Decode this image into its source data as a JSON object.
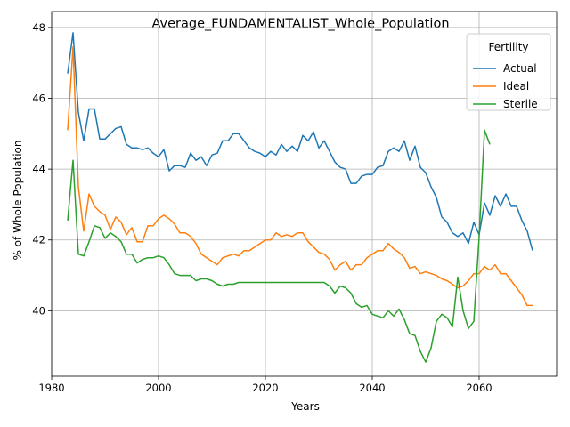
{
  "chart_data": {
    "type": "line",
    "title": "Average_FUNDAMENTALIST_Whole_Population",
    "xlabel": "Years",
    "ylabel": "% of Whole Population",
    "xlim": [
      1980,
      2074.5
    ],
    "ylim": [
      38.15,
      48.45
    ],
    "xticks": [
      1980,
      2000,
      2020,
      2040,
      2060
    ],
    "yticks": [
      40,
      42,
      44,
      46,
      48
    ],
    "grid": true,
    "legend": {
      "title": "Fertility",
      "placement": "top-right"
    },
    "series": [
      {
        "name": "Actual",
        "color": "#1f77b4",
        "x": [
          1983,
          1984,
          1985,
          1986,
          1987,
          1988,
          1989,
          1990,
          1991,
          1992,
          1993,
          1994,
          1995,
          1996,
          1997,
          1998,
          1999,
          2000,
          2001,
          2002,
          2003,
          2004,
          2005,
          2006,
          2007,
          2008,
          2009,
          2010,
          2011,
          2012,
          2013,
          2014,
          2015,
          2016,
          2017,
          2018,
          2019,
          2020,
          2021,
          2022,
          2023,
          2024,
          2025,
          2026,
          2027,
          2028,
          2029,
          2030,
          2031,
          2032,
          2033,
          2034,
          2035,
          2036,
          2037,
          2038,
          2039,
          2040,
          2041,
          2042,
          2043,
          2044,
          2045,
          2046,
          2047,
          2048,
          2049,
          2050,
          2051,
          2052,
          2053,
          2054,
          2055,
          2056,
          2057,
          2058,
          2059,
          2060,
          2061,
          2062,
          2063,
          2064,
          2065,
          2066,
          2067,
          2068,
          2069,
          2070
        ],
        "values": [
          46.7,
          47.85,
          45.6,
          44.8,
          45.7,
          45.7,
          44.85,
          44.85,
          45.0,
          45.15,
          45.2,
          44.7,
          44.6,
          44.6,
          44.55,
          44.6,
          44.45,
          44.35,
          44.55,
          43.95,
          44.1,
          44.1,
          44.05,
          44.45,
          44.25,
          44.35,
          44.1,
          44.4,
          44.45,
          44.8,
          44.8,
          45.0,
          45.0,
          44.8,
          44.6,
          44.5,
          44.45,
          44.35,
          44.5,
          44.4,
          44.7,
          44.5,
          44.65,
          44.5,
          44.95,
          44.8,
          45.05,
          44.6,
          44.8,
          44.5,
          44.2,
          44.05,
          44.0,
          43.6,
          43.6,
          43.8,
          43.85,
          43.85,
          44.05,
          44.1,
          44.5,
          44.6,
          44.5,
          44.8,
          44.25,
          44.65,
          44.05,
          43.9,
          43.5,
          43.2,
          42.65,
          42.5,
          42.2,
          42.1,
          42.2,
          41.9,
          42.5,
          42.15,
          43.05,
          42.7,
          43.25,
          42.95,
          43.3,
          42.95,
          42.95,
          42.55,
          42.25,
          41.7
        ]
      },
      {
        "name": "Ideal",
        "color": "#ff7f0e",
        "x": [
          1983,
          1984,
          1985,
          1986,
          1987,
          1988,
          1989,
          1990,
          1991,
          1992,
          1993,
          1994,
          1995,
          1996,
          1997,
          1998,
          1999,
          2000,
          2001,
          2002,
          2003,
          2004,
          2005,
          2006,
          2007,
          2008,
          2009,
          2010,
          2011,
          2012,
          2013,
          2014,
          2015,
          2016,
          2017,
          2018,
          2019,
          2020,
          2021,
          2022,
          2023,
          2024,
          2025,
          2026,
          2027,
          2028,
          2029,
          2030,
          2031,
          2032,
          2033,
          2034,
          2035,
          2036,
          2037,
          2038,
          2039,
          2040,
          2041,
          2042,
          2043,
          2044,
          2045,
          2046,
          2047,
          2048,
          2049,
          2050,
          2051,
          2052,
          2053,
          2054,
          2055,
          2056,
          2057,
          2058,
          2059,
          2060,
          2061,
          2062,
          2063,
          2064,
          2065,
          2066,
          2067,
          2068,
          2069,
          2070
        ],
        "values": [
          45.1,
          47.45,
          43.5,
          42.25,
          43.3,
          42.95,
          42.8,
          42.7,
          42.3,
          42.65,
          42.5,
          42.15,
          42.35,
          41.95,
          41.95,
          42.4,
          42.4,
          42.6,
          42.7,
          42.6,
          42.45,
          42.2,
          42.2,
          42.1,
          41.9,
          41.6,
          41.5,
          41.4,
          41.3,
          41.5,
          41.55,
          41.6,
          41.55,
          41.7,
          41.7,
          41.8,
          41.9,
          42.0,
          42.0,
          42.2,
          42.1,
          42.15,
          42.1,
          42.2,
          42.2,
          41.95,
          41.8,
          41.65,
          41.6,
          41.45,
          41.15,
          41.3,
          41.4,
          41.15,
          41.3,
          41.3,
          41.5,
          41.6,
          41.7,
          41.7,
          41.9,
          41.75,
          41.65,
          41.5,
          41.2,
          41.25,
          41.05,
          41.1,
          41.05,
          41.0,
          40.9,
          40.85,
          40.75,
          40.65,
          40.7,
          40.85,
          41.05,
          41.05,
          41.25,
          41.15,
          41.3,
          41.05,
          41.05,
          40.85,
          40.65,
          40.45,
          40.15,
          40.15
        ]
      },
      {
        "name": "Sterile",
        "color": "#2ca02c",
        "x": [
          1983,
          1984,
          1985,
          1986,
          1987,
          1988,
          1989,
          1990,
          1991,
          1992,
          1993,
          1994,
          1995,
          1996,
          1997,
          1998,
          1999,
          2000,
          2001,
          2002,
          2003,
          2004,
          2005,
          2006,
          2007,
          2008,
          2009,
          2010,
          2011,
          2012,
          2013,
          2014,
          2015,
          2016,
          2017,
          2018,
          2019,
          2020,
          2021,
          2022,
          2023,
          2024,
          2025,
          2026,
          2027,
          2028,
          2029,
          2030,
          2031,
          2032,
          2033,
          2034,
          2035,
          2036,
          2037,
          2038,
          2039,
          2040,
          2041,
          2042,
          2043,
          2044,
          2045,
          2046,
          2047,
          2048,
          2049,
          2050,
          2051,
          2052,
          2053,
          2054,
          2055,
          2056,
          2057,
          2058,
          2059,
          2060,
          2061,
          2062
        ],
        "values": [
          42.55,
          44.25,
          41.6,
          41.55,
          41.95,
          42.4,
          42.35,
          42.05,
          42.2,
          42.1,
          41.95,
          41.6,
          41.6,
          41.35,
          41.45,
          41.5,
          41.5,
          41.55,
          41.5,
          41.3,
          41.05,
          41.0,
          41.0,
          41.0,
          40.85,
          40.9,
          40.9,
          40.85,
          40.75,
          40.7,
          40.75,
          40.75,
          40.8,
          40.8,
          40.8,
          40.8,
          40.8,
          40.8,
          40.8,
          40.8,
          40.8,
          40.8,
          40.8,
          40.8,
          40.8,
          40.8,
          40.8,
          40.8,
          40.8,
          40.7,
          40.5,
          40.7,
          40.65,
          40.5,
          40.2,
          40.1,
          40.15,
          39.9,
          39.85,
          39.8,
          40.0,
          39.85,
          40.05,
          39.75,
          39.35,
          39.3,
          38.85,
          38.55,
          38.95,
          39.7,
          39.9,
          39.8,
          39.55,
          40.95,
          40.0,
          39.5,
          39.7,
          42.1,
          45.1,
          44.7
        ]
      }
    ]
  }
}
